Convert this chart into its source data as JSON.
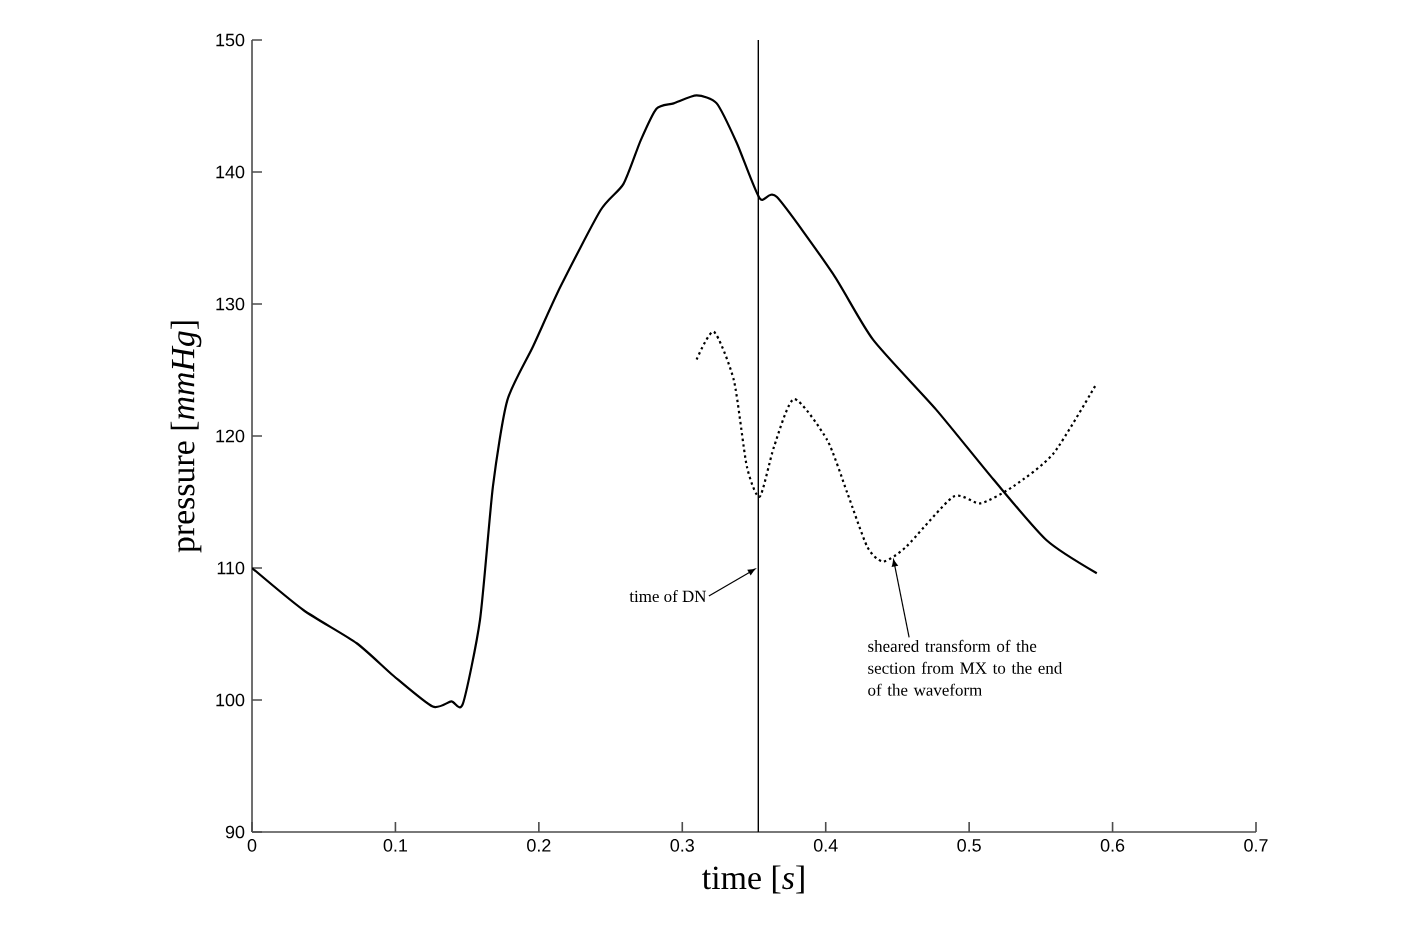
{
  "chart_data": {
    "type": "line",
    "xlabel": "time [*s*]",
    "ylabel": "pressure [*mmHg*]",
    "xlim": [
      0,
      0.7
    ],
    "ylim": [
      90,
      150
    ],
    "xticks": [
      0,
      0.1,
      0.2,
      0.3,
      0.4,
      0.5,
      0.6,
      0.7
    ],
    "yticks": [
      90,
      100,
      110,
      120,
      130,
      140,
      150
    ],
    "series": [
      {
        "color": "#000000",
        "line_style": "solid",
        "x": [
          0,
          0.036,
          0.073,
          0.099,
          0.126,
          0.139,
          0.147,
          0.159,
          0.168,
          0.178,
          0.196,
          0.215,
          0.243,
          0.259,
          0.271,
          0.282,
          0.294,
          0.31,
          0.324,
          0.338,
          0.354,
          0.366,
          0.405,
          0.433,
          0.477,
          0.517,
          0.554,
          0.589
        ],
        "values": [
          110.0,
          106.8,
          104.3,
          101.8,
          99.5,
          99.9,
          99.7,
          106.1,
          116.2,
          122.7,
          126.8,
          131.3,
          137.1,
          139.1,
          142.4,
          144.8,
          145.2,
          145.8,
          145.2,
          142.2,
          138.0,
          138.1,
          132.3,
          127.3,
          122.0,
          116.7,
          112.1,
          109.6
        ]
      },
      {
        "color": "#000000",
        "line_style": "dotted",
        "x": [
          0.31,
          0.322,
          0.336,
          0.345,
          0.354,
          0.364,
          0.378,
          0.401,
          0.415,
          0.429,
          0.44,
          0.456,
          0.489,
          0.508,
          0.531,
          0.559,
          0.589
        ],
        "values": [
          125.8,
          127.9,
          124.2,
          117.7,
          115.4,
          119.2,
          122.8,
          119.7,
          115.7,
          111.6,
          110.5,
          111.6,
          115.4,
          114.9,
          116.2,
          118.7,
          124.0
        ]
      }
    ],
    "ref_lines": [
      {
        "axis": "x",
        "value": 0.353,
        "color": "#000000"
      }
    ],
    "annotations": [
      {
        "text": "time of DN",
        "x": 0.352,
        "y": 110
      },
      {
        "text": "sheared transform of the section from MX to the end of the waveform",
        "x": 0.447,
        "y": 110.8
      }
    ]
  }
}
